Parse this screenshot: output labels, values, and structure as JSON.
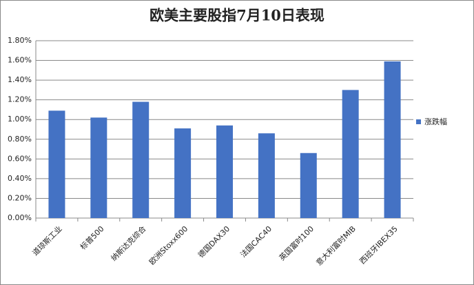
{
  "chart_data": {
    "type": "bar",
    "title": "欧美主要股指7月10日表现",
    "categories": [
      "道琼斯工业",
      "标普500",
      "纳斯达克综合",
      "欧洲Stoxx600",
      "德国DAX30",
      "法国CAC40",
      "英国富时100",
      "意大利富时MIB",
      "西班牙IBEX35"
    ],
    "series": [
      {
        "name": "涨跌幅",
        "color": "#4472c4",
        "values": [
          1.09,
          1.02,
          1.18,
          0.91,
          0.94,
          0.86,
          0.66,
          1.3,
          1.59
        ]
      }
    ],
    "ylim": [
      0,
      1.8
    ],
    "yticks": [
      {
        "value": 0,
        "label": "0.00%"
      },
      {
        "value": 0.2,
        "label": "0.20%"
      },
      {
        "value": 0.4,
        "label": "0.40%"
      },
      {
        "value": 0.6,
        "label": "0.60%"
      },
      {
        "value": 0.8,
        "label": "0.80%"
      },
      {
        "value": 1.0,
        "label": "1.00%"
      },
      {
        "value": 1.2,
        "label": "1.20%"
      },
      {
        "value": 1.4,
        "label": "1.40%"
      },
      {
        "value": 1.6,
        "label": "1.60%"
      },
      {
        "value": 1.8,
        "label": "1.80%"
      }
    ],
    "grid": true,
    "legend": "right"
  }
}
